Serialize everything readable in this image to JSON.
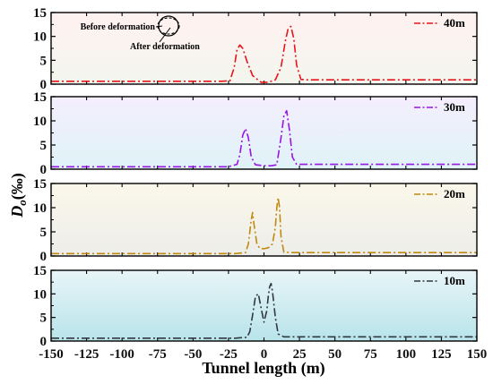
{
  "chart_data": {
    "type": "line",
    "layout": "4 stacked panels sharing x-axis",
    "xlabel": "Tunnel length (m)",
    "ylabel_main": "D",
    "ylabel_sub": "o",
    "ylabel_unit": "(‰)",
    "xlim": [
      -150,
      150
    ],
    "xticks": [
      -150,
      -125,
      -100,
      -75,
      -50,
      -25,
      0,
      25,
      50,
      75,
      100,
      125,
      150
    ],
    "ylim": [
      0,
      15
    ],
    "yticks": [
      0,
      5,
      10,
      15
    ],
    "grid": false,
    "legend_position": "top-right",
    "line_style": "dash-dot",
    "annotation": {
      "before_label": "Before deformation",
      "after_label": "After deformation"
    },
    "panels": [
      {
        "name": "40m",
        "color": "#e8141c",
        "background": [
          "#fff1f1",
          "#f3f6ee"
        ],
        "x": [
          -150,
          -100,
          -50,
          -30,
          -24,
          -21,
          -19,
          -17,
          -15,
          -12,
          -8,
          -2,
          3,
          8,
          12,
          15,
          17,
          19,
          21,
          23,
          26,
          30,
          50,
          100,
          150
        ],
        "values": [
          0.6,
          0.6,
          0.6,
          0.6,
          0.7,
          3.5,
          7.2,
          8.2,
          7.5,
          4.8,
          1.8,
          0.4,
          0.4,
          0.9,
          3.5,
          9.0,
          11.6,
          12.1,
          9.5,
          4.0,
          1.0,
          0.9,
          0.9,
          0.9,
          0.9
        ]
      },
      {
        "name": "30m",
        "color": "#9a14e8",
        "background": [
          "#f5eefe",
          "#dff3f7"
        ],
        "x": [
          -150,
          -100,
          -50,
          -25,
          -19,
          -17,
          -15,
          -13,
          -11,
          -9,
          -6,
          0,
          5,
          9,
          12,
          14,
          16,
          18,
          20,
          23,
          30,
          50,
          100,
          150
        ],
        "values": [
          0.5,
          0.5,
          0.5,
          0.5,
          1.0,
          3.0,
          7.0,
          8.4,
          6.5,
          2.5,
          0.9,
          0.7,
          0.7,
          0.9,
          6.5,
          11.0,
          12.1,
          8.0,
          2.5,
          1.0,
          1.0,
          1.0,
          1.0,
          1.0
        ]
      },
      {
        "name": "20m",
        "color": "#c08a10",
        "background": [
          "#fbf8ea",
          "#ededea"
        ],
        "x": [
          -150,
          -100,
          -50,
          -20,
          -13,
          -11,
          -9,
          -8,
          -7,
          -5,
          -3,
          0,
          3,
          6,
          8,
          9,
          10,
          11,
          12,
          14,
          20,
          50,
          100,
          150
        ],
        "values": [
          0.5,
          0.5,
          0.5,
          0.5,
          0.7,
          2.5,
          7.5,
          9.0,
          6.5,
          2.5,
          1.6,
          1.5,
          1.7,
          2.5,
          6.0,
          10.0,
          12.1,
          10.0,
          4.0,
          0.8,
          0.7,
          0.7,
          0.7,
          0.7
        ]
      },
      {
        "name": "10m",
        "color": "#303840",
        "background": [
          "#e8f5f8",
          "#b8e4ea"
        ],
        "x": [
          -150,
          -100,
          -50,
          -20,
          -12,
          -10,
          -8,
          -6,
          -4,
          -2,
          0,
          2,
          3,
          4,
          5,
          6,
          8,
          10,
          14,
          20,
          50,
          100,
          150
        ],
        "values": [
          0.6,
          0.6,
          0.6,
          0.6,
          0.8,
          2.0,
          5.5,
          9.5,
          10.0,
          7.0,
          4.0,
          6.5,
          9.5,
          11.5,
          12.2,
          10.5,
          5.0,
          1.5,
          0.9,
          0.9,
          0.9,
          0.9,
          0.9
        ]
      }
    ]
  }
}
